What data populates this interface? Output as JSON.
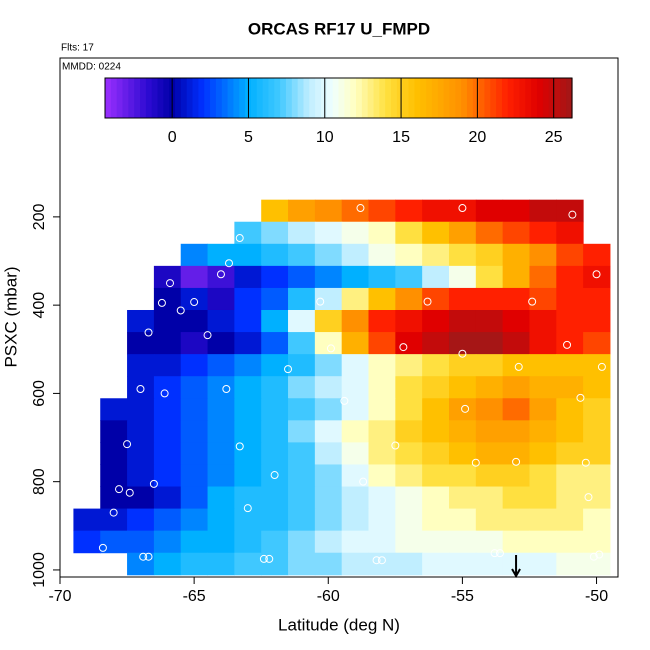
{
  "chart_data": {
    "type": "heatmap",
    "title": "ORCAS RF17 U_FMPD",
    "annotations": [
      "Flts: 17",
      "MMDD: 0224"
    ],
    "xlabel": "Latitude (deg N)",
    "ylabel": "PSXC (mbar)",
    "xlim": [
      -70,
      -49.2
    ],
    "xticks": [
      -70,
      -65,
      -60,
      -55,
      -50
    ],
    "ylim": [
      1016,
      -160
    ],
    "yticks": [
      200,
      400,
      600,
      800,
      1000
    ],
    "x_bins": [
      -69.5,
      -68.5,
      -67.5,
      -66.5,
      -65.5,
      -64.5,
      -63.5,
      -62.5,
      -61.5,
      -60.5,
      -59.5,
      -58.5,
      -57.5,
      -56.5,
      -55.5,
      -54.5,
      -53.5,
      -52.5,
      -51.5,
      -50.5,
      -49.5
    ],
    "y_bins": [
      161,
      211,
      261,
      311,
      361,
      411,
      461,
      511,
      561,
      611,
      661,
      711,
      761,
      811,
      861,
      911,
      961,
      1011
    ],
    "z": [
      [
        null,
        null,
        null,
        null,
        null,
        null,
        null,
        16,
        18,
        19,
        20,
        21,
        22,
        23,
        23,
        24,
        24,
        25,
        25,
        null
      ],
      [
        null,
        null,
        null,
        null,
        null,
        null,
        7,
        8,
        9,
        10,
        11,
        12,
        14,
        16,
        18,
        20,
        21,
        22,
        23,
        null
      ],
      [
        null,
        null,
        null,
        null,
        4,
        5,
        5,
        6,
        7,
        8,
        9,
        11,
        12,
        13,
        14,
        15,
        17,
        19,
        21,
        22
      ],
      [
        null,
        null,
        null,
        -1,
        -3,
        -2,
        1,
        2,
        3,
        4,
        5,
        6,
        7,
        9,
        11,
        14,
        17,
        20,
        22,
        23
      ],
      [
        null,
        null,
        null,
        0,
        1,
        -1,
        2,
        3,
        6,
        9,
        13,
        16,
        19,
        21,
        22,
        22,
        22,
        21,
        22,
        22
      ],
      [
        null,
        null,
        1,
        0,
        0,
        1,
        2,
        5,
        10,
        15,
        19,
        22,
        23,
        24,
        25,
        25,
        24,
        23,
        22,
        22
      ],
      [
        null,
        null,
        0,
        0,
        -1,
        0,
        1,
        3,
        7,
        12,
        17,
        21,
        24,
        25,
        26,
        26,
        25,
        23,
        22,
        21
      ],
      [
        null,
        null,
        1,
        1,
        2,
        3,
        4,
        5,
        6,
        8,
        10,
        12,
        13,
        14,
        15,
        15,
        16,
        16,
        16,
        16
      ],
      [
        null,
        null,
        1,
        2,
        3,
        4,
        5,
        6,
        8,
        9,
        10,
        12,
        14,
        15,
        16,
        17,
        18,
        17,
        17,
        16
      ],
      [
        null,
        1,
        1,
        2,
        3,
        4,
        5,
        6,
        7,
        8,
        10,
        12,
        14,
        16,
        18,
        19,
        20,
        18,
        16,
        15
      ],
      [
        null,
        0,
        1,
        2,
        3,
        4,
        5,
        6,
        8,
        10,
        12,
        13,
        15,
        16,
        17,
        18,
        18,
        17,
        16,
        15
      ],
      [
        null,
        0,
        1,
        2,
        3,
        4,
        5,
        6,
        7,
        9,
        11,
        13,
        14,
        15,
        16,
        17,
        17,
        16,
        15,
        15
      ],
      [
        null,
        0,
        1,
        2,
        3,
        4,
        5,
        6,
        7,
        8,
        10,
        12,
        13,
        14,
        14,
        15,
        15,
        14,
        13,
        13
      ],
      [
        null,
        0,
        0,
        1,
        3,
        5,
        6,
        6,
        7,
        8,
        9,
        10,
        11,
        12,
        13,
        13,
        14,
        14,
        13,
        13
      ],
      [
        1,
        1,
        2,
        3,
        4,
        5,
        6,
        6,
        7,
        8,
        9,
        10,
        11,
        12,
        12,
        13,
        13,
        13,
        13,
        12
      ],
      [
        2,
        3,
        3,
        4,
        5,
        5,
        6,
        7,
        8,
        9,
        10,
        10,
        11,
        11,
        11,
        11,
        12,
        12,
        12,
        12
      ],
      [
        null,
        null,
        4,
        5,
        6,
        6,
        7,
        7,
        8,
        8,
        9,
        9,
        9,
        10,
        10,
        10,
        10,
        10,
        11,
        11
      ]
    ],
    "colormap": [
      [
        -4.4,
        "#9b30ff"
      ],
      [
        -1.5,
        "#2a0ad0"
      ],
      [
        0,
        "#0000a8"
      ],
      [
        2,
        "#0030ff"
      ],
      [
        5,
        "#00b0ff"
      ],
      [
        7,
        "#40c8ff"
      ],
      [
        9,
        "#c0eeff"
      ],
      [
        10.5,
        "#f0ffff"
      ],
      [
        12,
        "#ffffc0"
      ],
      [
        14,
        "#ffe040"
      ],
      [
        16,
        "#ffc000"
      ],
      [
        19,
        "#ff9000"
      ],
      [
        22,
        "#ff2000"
      ],
      [
        24,
        "#e00000"
      ],
      [
        26.2,
        "#a01818"
      ]
    ],
    "colorbar": {
      "lim": [
        -4.4,
        26.2
      ],
      "ticks": [
        0,
        5,
        10,
        15,
        20,
        25
      ]
    },
    "points": {
      "color": "#ffffff",
      "x": [
        -58.8,
        -55,
        -50.9,
        -63.3,
        -63.7,
        -64,
        -65.9,
        -50,
        -65,
        -66.2,
        -65.5,
        -60.3,
        -56.3,
        -52.4,
        -64.5,
        -66.7,
        -59.9,
        -57.2,
        -55,
        -51.1,
        -49.8,
        -52.9,
        -61.5,
        -66.1,
        -63.8,
        -59.4,
        -67,
        -50.6,
        -54.9,
        -67.5,
        -63.3,
        -57.5,
        -54.5,
        -53,
        -50.4,
        -66.5,
        -62,
        -58.7,
        -67.8,
        -67.4,
        -68,
        -63,
        -50.3,
        -68.4,
        -66.9,
        -66.7,
        -62.4,
        -62.2,
        -58.2,
        -58,
        -53.8,
        -53.6,
        -50.1,
        -49.9
      ],
      "y": [
        180,
        180,
        195,
        248,
        305,
        330,
        350,
        330,
        393,
        395,
        412,
        392,
        392,
        392,
        468,
        462,
        498,
        495,
        510,
        490,
        540,
        540,
        545,
        600,
        590,
        617,
        590,
        610,
        635,
        715,
        720,
        718,
        757,
        755,
        757,
        805,
        785,
        800,
        817,
        825,
        870,
        860,
        835,
        950,
        970,
        970,
        975,
        975,
        978,
        978,
        962,
        962,
        970,
        965
      ]
    },
    "marker_x": -53
  }
}
